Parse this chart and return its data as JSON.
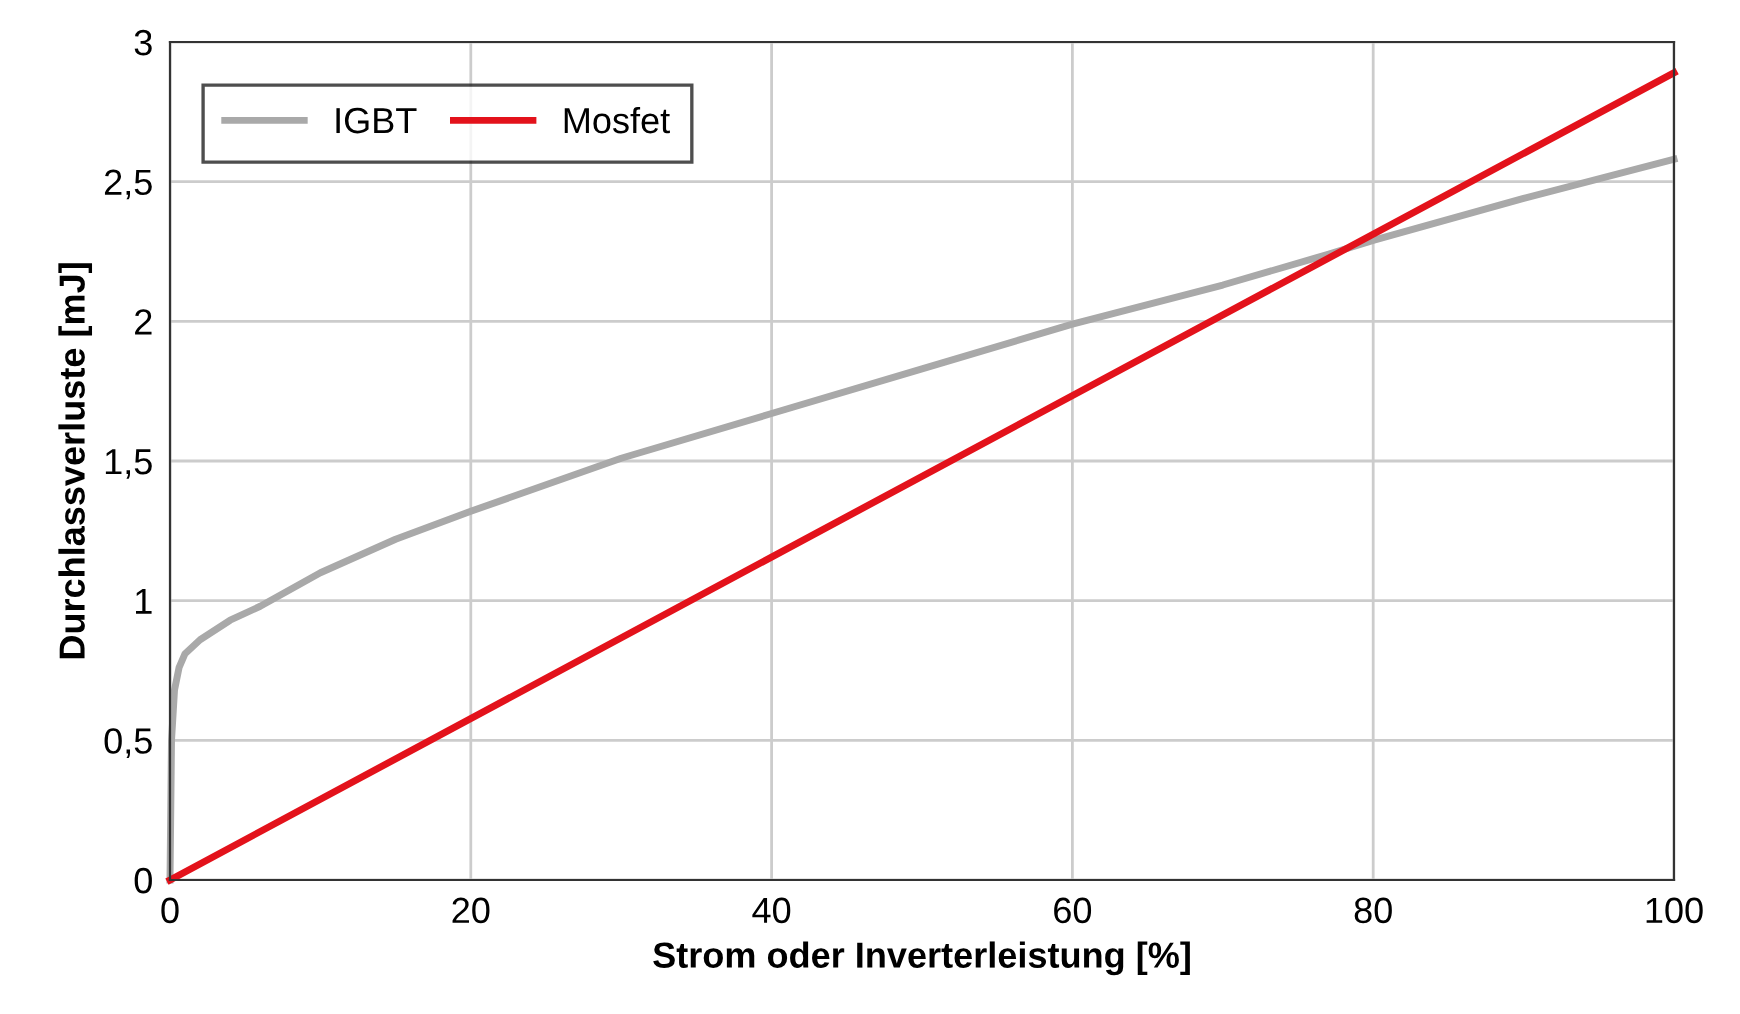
{
  "chart_data": {
    "type": "line",
    "xlabel": "Strom oder Inverterleistung [%]",
    "ylabel": "Durchlassverluste [mJ]",
    "xlim": [
      0,
      100
    ],
    "xticks": [
      0,
      20,
      40,
      60,
      80,
      100
    ],
    "ylim": [
      0,
      3
    ],
    "yticks": [
      0,
      {
        "value": 0.5,
        "label": "0,5"
      },
      1,
      {
        "value": 1.5,
        "label": "1,5"
      },
      2,
      {
        "value": 2.5,
        "label": "2,5"
      },
      3
    ],
    "grid": true,
    "legend": "top left",
    "marker": "none",
    "line_style": "solid",
    "series": [
      {
        "name": "IGBT",
        "color": "#a9a9a9",
        "x": [
          0,
          0.1,
          0.3,
          0.6,
          1,
          2,
          4,
          6,
          10,
          15,
          20,
          30,
          40,
          50,
          60,
          70,
          77,
          80,
          90,
          100
        ],
        "values": [
          0,
          0.5,
          0.68,
          0.76,
          0.81,
          0.86,
          0.93,
          0.98,
          1.1,
          1.22,
          1.32,
          1.51,
          1.67,
          1.83,
          1.99,
          2.13,
          2.24,
          2.29,
          2.44,
          2.58
        ]
      },
      {
        "name": "Mosfet",
        "color": "#e3121b",
        "x": [
          0,
          100
        ],
        "values": [
          0,
          2.89
        ]
      }
    ]
  }
}
